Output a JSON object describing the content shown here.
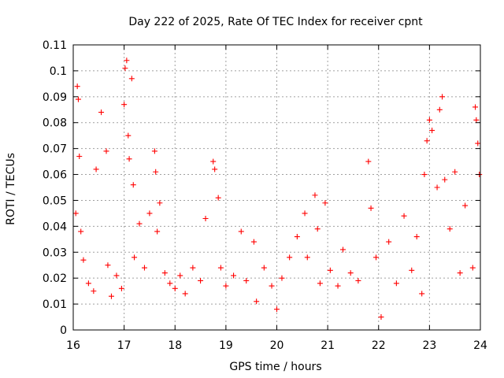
{
  "chart_data": {
    "type": "scatter",
    "title": "Day 222 of 2025, Rate Of TEC Index for receiver cpnt",
    "xlabel": "GPS time / hours",
    "ylabel": "ROTI / TECUs",
    "xlim": [
      16,
      24
    ],
    "ylim": [
      0,
      0.11
    ],
    "xticks": [
      16,
      17,
      18,
      19,
      20,
      21,
      22,
      23,
      24
    ],
    "xtick_labels": [
      "16",
      "17",
      "18",
      "19",
      "20",
      "21",
      "22",
      "23",
      "24"
    ],
    "yticks": [
      0,
      0.01,
      0.02,
      0.03,
      0.04,
      0.05,
      0.06,
      0.07,
      0.08,
      0.09,
      0.1,
      0.11
    ],
    "ytick_labels": [
      "0",
      "0.01",
      "0.02",
      "0.03",
      "0.04",
      "0.05",
      "0.06",
      "0.07",
      "0.08",
      "0.09",
      "0.1",
      "0.11"
    ],
    "grid": true,
    "marker": "+",
    "color": "#ff0000",
    "series": [
      {
        "name": "ROTI",
        "x": [
          16.05,
          16.08,
          16.1,
          16.12,
          16.15,
          16.2,
          16.3,
          16.4,
          16.45,
          16.55,
          16.65,
          16.68,
          16.75,
          16.85,
          16.95,
          17.0,
          17.02,
          17.05,
          17.08,
          17.1,
          17.15,
          17.18,
          17.2,
          17.3,
          17.4,
          17.5,
          17.6,
          17.62,
          17.65,
          17.7,
          17.8,
          17.9,
          18.0,
          18.1,
          18.2,
          18.35,
          18.5,
          18.6,
          18.75,
          18.78,
          18.85,
          18.9,
          19.0,
          19.15,
          19.3,
          19.4,
          19.55,
          19.6,
          19.75,
          19.9,
          20.0,
          20.1,
          20.25,
          20.4,
          20.55,
          20.6,
          20.75,
          20.8,
          20.85,
          20.95,
          21.05,
          21.2,
          21.3,
          21.45,
          21.6,
          21.8,
          21.85,
          21.95,
          22.05,
          22.2,
          22.35,
          22.5,
          22.65,
          22.75,
          22.85,
          22.9,
          22.95,
          23.0,
          23.05,
          23.15,
          23.2,
          23.25,
          23.3,
          23.4,
          23.5,
          23.6,
          23.7,
          23.85,
          23.9,
          23.92,
          23.95,
          23.98
        ],
        "y": [
          0.045,
          0.094,
          0.089,
          0.067,
          0.038,
          0.027,
          0.018,
          0.015,
          0.062,
          0.084,
          0.069,
          0.025,
          0.013,
          0.021,
          0.016,
          0.087,
          0.101,
          0.104,
          0.075,
          0.066,
          0.097,
          0.056,
          0.028,
          0.041,
          0.024,
          0.045,
          0.069,
          0.061,
          0.038,
          0.049,
          0.022,
          0.018,
          0.016,
          0.021,
          0.014,
          0.024,
          0.019,
          0.043,
          0.065,
          0.062,
          0.051,
          0.024,
          0.017,
          0.021,
          0.038,
          0.019,
          0.034,
          0.011,
          0.024,
          0.017,
          0.008,
          0.02,
          0.028,
          0.036,
          0.045,
          0.028,
          0.052,
          0.039,
          0.018,
          0.049,
          0.023,
          0.017,
          0.031,
          0.022,
          0.019,
          0.065,
          0.047,
          0.028,
          0.005,
          0.034,
          0.018,
          0.044,
          0.023,
          0.036,
          0.014,
          0.06,
          0.073,
          0.081,
          0.077,
          0.055,
          0.085,
          0.09,
          0.058,
          0.039,
          0.061,
          0.022,
          0.048,
          0.024,
          0.086,
          0.081,
          0.072,
          0.06
        ]
      }
    ]
  }
}
